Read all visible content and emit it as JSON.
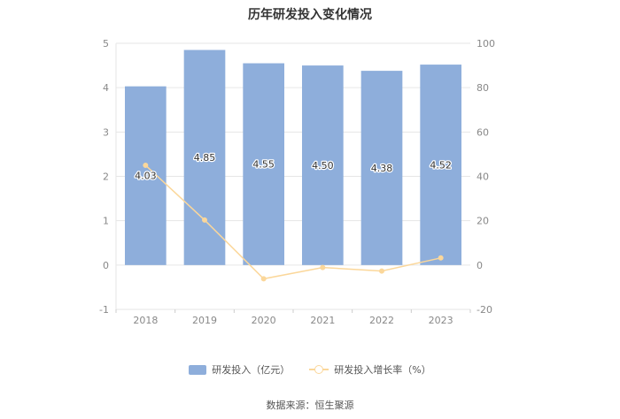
{
  "chart_data": {
    "type": "bar",
    "title": "历年研发投入变化情况",
    "categories": [
      "2018",
      "2019",
      "2020",
      "2021",
      "2022",
      "2023"
    ],
    "series": [
      {
        "name": "研发投入（亿元）",
        "type": "bar",
        "axis": "left",
        "values": [
          4.03,
          4.85,
          4.55,
          4.5,
          4.38,
          4.52
        ],
        "labels": [
          "4.03",
          "4.85",
          "4.55",
          "4.50",
          "4.38",
          "4.52"
        ],
        "color": "#8eaedb"
      },
      {
        "name": "研发投入增长率（%）",
        "type": "line",
        "axis": "right",
        "values": [
          45,
          20.3,
          -6.2,
          -1.1,
          -2.7,
          3.2
        ],
        "color": "#fbd79a"
      }
    ],
    "y_left": {
      "min": -1,
      "max": 5,
      "ticks": [
        "-1",
        "0",
        "1",
        "2",
        "3",
        "4",
        "5"
      ]
    },
    "y_right": {
      "min": -20,
      "max": 100,
      "ticks": [
        "-20",
        "0",
        "20",
        "40",
        "60",
        "80",
        "100"
      ]
    },
    "grid": true,
    "legend": "bottom-center"
  },
  "source": "数据来源：恒生聚源"
}
